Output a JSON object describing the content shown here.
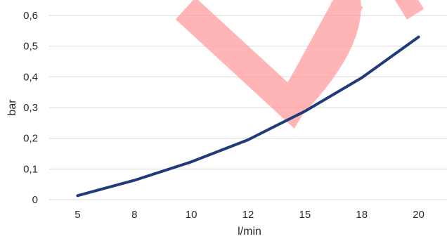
{
  "chart_data": {
    "type": "line",
    "title": "",
    "xlabel": "l/min",
    "ylabel": "bar",
    "categories": [
      "5",
      "8",
      "10",
      "12",
      "15",
      "18",
      "20"
    ],
    "series": [
      {
        "values": [
          0.013,
          0.063,
          0.123,
          0.195,
          0.288,
          0.397,
          0.53
        ],
        "color": "#1f3b7a"
      }
    ],
    "ylim": [
      0,
      0.6
    ],
    "yticks": [
      0,
      0.1,
      0.2,
      0.3,
      0.4,
      0.5,
      0.6
    ],
    "ytick_labels": [
      "0",
      "0,1",
      "0,2",
      "0,3",
      "0,4",
      "0,5",
      "0,6"
    ],
    "grid": true,
    "gridline_color": "#d9d9d9",
    "watermark": {
      "color": "#ff9c9c",
      "opacity": 0.75
    }
  }
}
